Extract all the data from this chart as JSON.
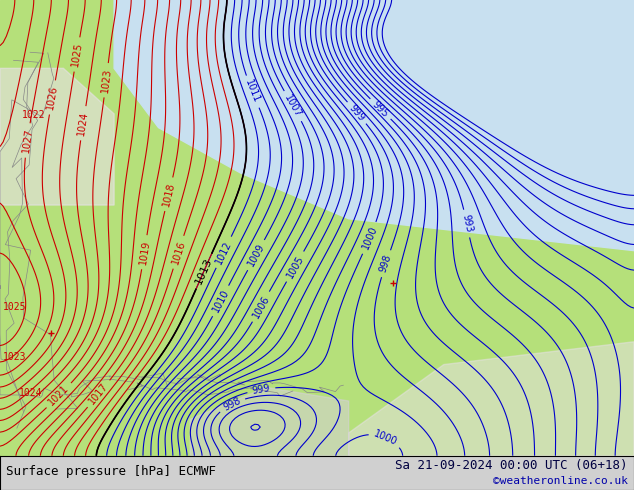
{
  "title_left": "Surface pressure [hPa] ECMWF",
  "title_right": "Sa 21-09-2024 00:00 UTC (06+18)",
  "copyright": "©weatheronline.co.uk",
  "bg_color_land": "#b5e07a",
  "bg_color_sea_upper": "#c8e0f0",
  "bg_color_land_high": "#e8e0e8",
  "bottom_bar_color": "#d0d0d0",
  "text_color_left": "#000000",
  "text_color_right": "#000040",
  "text_color_copy": "#0000aa",
  "red_contour_color": "#cc0000",
  "blue_contour_color": "#0000cc",
  "black_contour_color": "#000000",
  "contour_linewidth": 0.8,
  "label_fontsize": 7,
  "title_fontsize": 9,
  "figsize": [
    6.34,
    4.9
  ],
  "dpi": 100
}
